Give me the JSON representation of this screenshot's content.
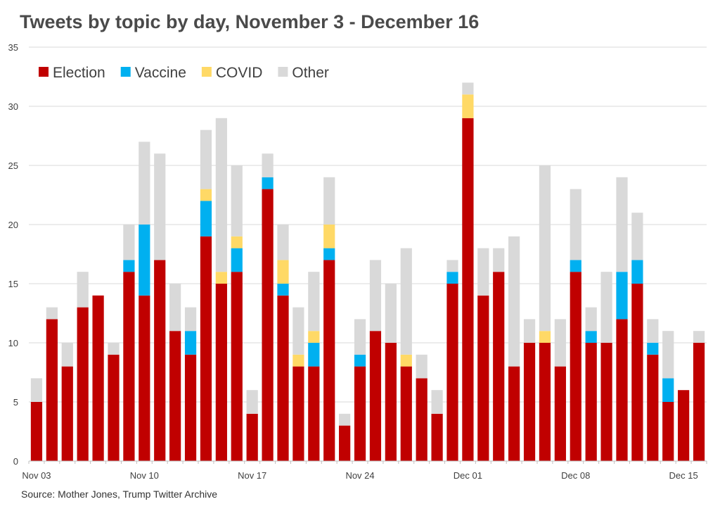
{
  "title": "Tweets by topic by day, November 3 - December 16",
  "source": "Source: Mother Jones, Trump Twitter Archive",
  "chart_data": {
    "type": "bar",
    "stacked": true,
    "ylim": [
      0,
      35
    ],
    "yticks": [
      0,
      5,
      10,
      15,
      20,
      25,
      30,
      35
    ],
    "grid": true,
    "legend_position": "top-left",
    "x_tick_labels": [
      {
        "index": 0,
        "label": "Nov 03"
      },
      {
        "index": 7,
        "label": "Nov 10"
      },
      {
        "index": 14,
        "label": "Nov 17"
      },
      {
        "index": 21,
        "label": "Nov 24"
      },
      {
        "index": 28,
        "label": "Dec 01"
      },
      {
        "index": 35,
        "label": "Dec 08"
      },
      {
        "index": 42,
        "label": "Dec 15"
      }
    ],
    "categories": [
      "Nov 03",
      "Nov 04",
      "Nov 05",
      "Nov 06",
      "Nov 07",
      "Nov 08",
      "Nov 09",
      "Nov 10",
      "Nov 11",
      "Nov 12",
      "Nov 13",
      "Nov 14",
      "Nov 15",
      "Nov 16",
      "Nov 17",
      "Nov 18",
      "Nov 19",
      "Nov 20",
      "Nov 21",
      "Nov 22",
      "Nov 23",
      "Nov 24",
      "Nov 25",
      "Nov 26",
      "Nov 27",
      "Nov 28",
      "Nov 29",
      "Nov 30",
      "Dec 01",
      "Dec 02",
      "Dec 03",
      "Dec 04",
      "Dec 05",
      "Dec 06",
      "Dec 07",
      "Dec 08",
      "Dec 09",
      "Dec 10",
      "Dec 11",
      "Dec 12",
      "Dec 13",
      "Dec 14",
      "Dec 15",
      "Dec 16"
    ],
    "series": [
      {
        "name": "Election",
        "color": "#c00000",
        "values": [
          5,
          12,
          8,
          13,
          14,
          9,
          16,
          14,
          17,
          11,
          9,
          19,
          15,
          16,
          4,
          23,
          14,
          8,
          8,
          17,
          3,
          8,
          11,
          10,
          8,
          7,
          4,
          15,
          29,
          14,
          16,
          8,
          10,
          10,
          8,
          16,
          10,
          10,
          12,
          15,
          9,
          5,
          6,
          10
        ]
      },
      {
        "name": "Vaccine",
        "color": "#00b0f0",
        "values": [
          0,
          0,
          0,
          0,
          0,
          0,
          1,
          6,
          0,
          0,
          2,
          3,
          0,
          2,
          0,
          1,
          1,
          0,
          2,
          1,
          0,
          1,
          0,
          0,
          0,
          0,
          0,
          1,
          0,
          0,
          0,
          0,
          0,
          0,
          0,
          1,
          1,
          0,
          4,
          2,
          1,
          2,
          0,
          0
        ]
      },
      {
        "name": "COVID",
        "color": "#ffd966",
        "values": [
          0,
          0,
          0,
          0,
          0,
          0,
          0,
          0,
          0,
          0,
          0,
          1,
          1,
          1,
          0,
          0,
          2,
          1,
          1,
          2,
          0,
          0,
          0,
          0,
          1,
          0,
          0,
          0,
          2,
          0,
          0,
          0,
          0,
          1,
          0,
          0,
          0,
          0,
          0,
          0,
          0,
          0,
          0,
          0
        ]
      },
      {
        "name": "Other",
        "color": "#d9d9d9",
        "values": [
          2,
          1,
          2,
          3,
          0,
          1,
          3,
          7,
          9,
          4,
          2,
          5,
          13,
          6,
          2,
          2,
          3,
          4,
          5,
          4,
          1,
          3,
          6,
          5,
          9,
          2,
          2,
          1,
          1,
          4,
          2,
          11,
          2,
          14,
          4,
          6,
          2,
          6,
          8,
          4,
          2,
          4,
          0,
          1
        ]
      }
    ]
  }
}
